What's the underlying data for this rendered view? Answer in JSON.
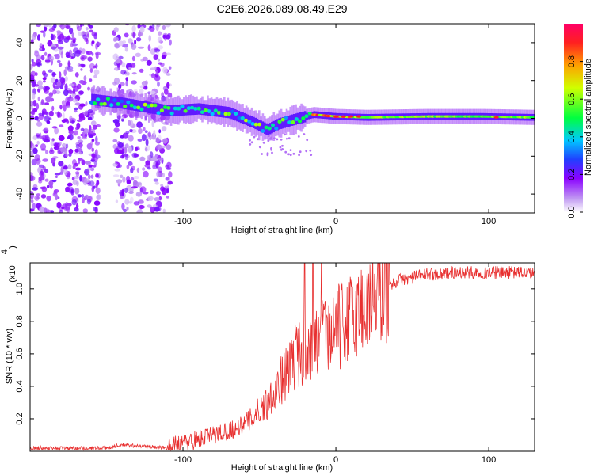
{
  "chart_data": [
    {
      "type": "heatmap",
      "title": "C2E6.2026.089.08.49.E29",
      "xlabel": "Height of straight line (km)",
      "ylabel": "Frequency (Hz)",
      "xlim": [
        -200,
        130
      ],
      "ylim": [
        -50,
        50
      ],
      "x_ticks": [
        -100,
        0,
        100
      ],
      "x_tick_labels": [
        "-100",
        "0",
        "100"
      ],
      "y_ticks": [
        -40,
        -20,
        0,
        20,
        40
      ],
      "y_tick_labels": [
        "-40",
        "-20",
        "0",
        "20",
        "40"
      ],
      "colorbar": {
        "label": "Normalized spectral amplitude",
        "range": [
          0,
          1
        ],
        "ticks": [
          0.0,
          0.2,
          0.4,
          0.6,
          0.8
        ],
        "tick_labels": [
          "0.0",
          "0.2",
          "0.4",
          "0.6",
          "0.8"
        ],
        "colormap": "rainbow"
      },
      "regions": [
        {
          "name": "noise-region-left",
          "x_range": [
            -200,
            -155
          ],
          "freq_range": [
            -50,
            50
          ],
          "amplitude": 0.12
        },
        {
          "name": "noise-region-right",
          "x_range": [
            -145,
            -108
          ],
          "freq_range": [
            -50,
            50
          ],
          "amplitude": 0.08
        },
        {
          "name": "signal-trace",
          "description": "signal near 0 Hz",
          "points": [
            [
              -160,
              10
            ],
            [
              -140,
              8
            ],
            [
              -110,
              4
            ],
            [
              -90,
              5
            ],
            [
              -70,
              3
            ],
            [
              -55,
              -2
            ],
            [
              -45,
              -6
            ],
            [
              -38,
              -3
            ],
            [
              -25,
              0
            ],
            [
              -15,
              2
            ],
            [
              0,
              1
            ],
            [
              20,
              0.5
            ],
            [
              60,
              1
            ],
            [
              95,
              1
            ],
            [
              130,
              0.5
            ]
          ]
        }
      ]
    },
    {
      "type": "line",
      "xlabel": "Height of straight line (km)",
      "ylabel": "SNR (10 * v/v)",
      "y_scale_label": "(x10",
      "y_scale_exponent": "4",
      "xlim": [
        -200,
        130
      ],
      "ylim": [
        0,
        1.16
      ],
      "x_ticks": [
        -100,
        0,
        100
      ],
      "x_tick_labels": [
        "-100",
        "0",
        "100"
      ],
      "y_ticks": [
        0.2,
        0.4,
        0.6,
        0.8,
        1.0
      ],
      "y_tick_labels": [
        "0.2",
        "0.4",
        "0.6",
        "0.8",
        "1.0"
      ],
      "series": [
        {
          "name": "SNR",
          "color": "#e83030",
          "envelope_x": [
            -200,
            -150,
            -140,
            -110,
            -100,
            -80,
            -60,
            -45,
            -35,
            -25,
            -15,
            -5,
            10,
            25,
            40,
            60,
            80,
            100,
            130
          ],
          "envelope_y": [
            0.02,
            0.02,
            0.04,
            0.02,
            0.05,
            0.1,
            0.16,
            0.3,
            0.45,
            0.6,
            0.64,
            0.72,
            0.82,
            0.95,
            1.05,
            1.09,
            1.1,
            1.1,
            1.1
          ]
        }
      ]
    }
  ]
}
